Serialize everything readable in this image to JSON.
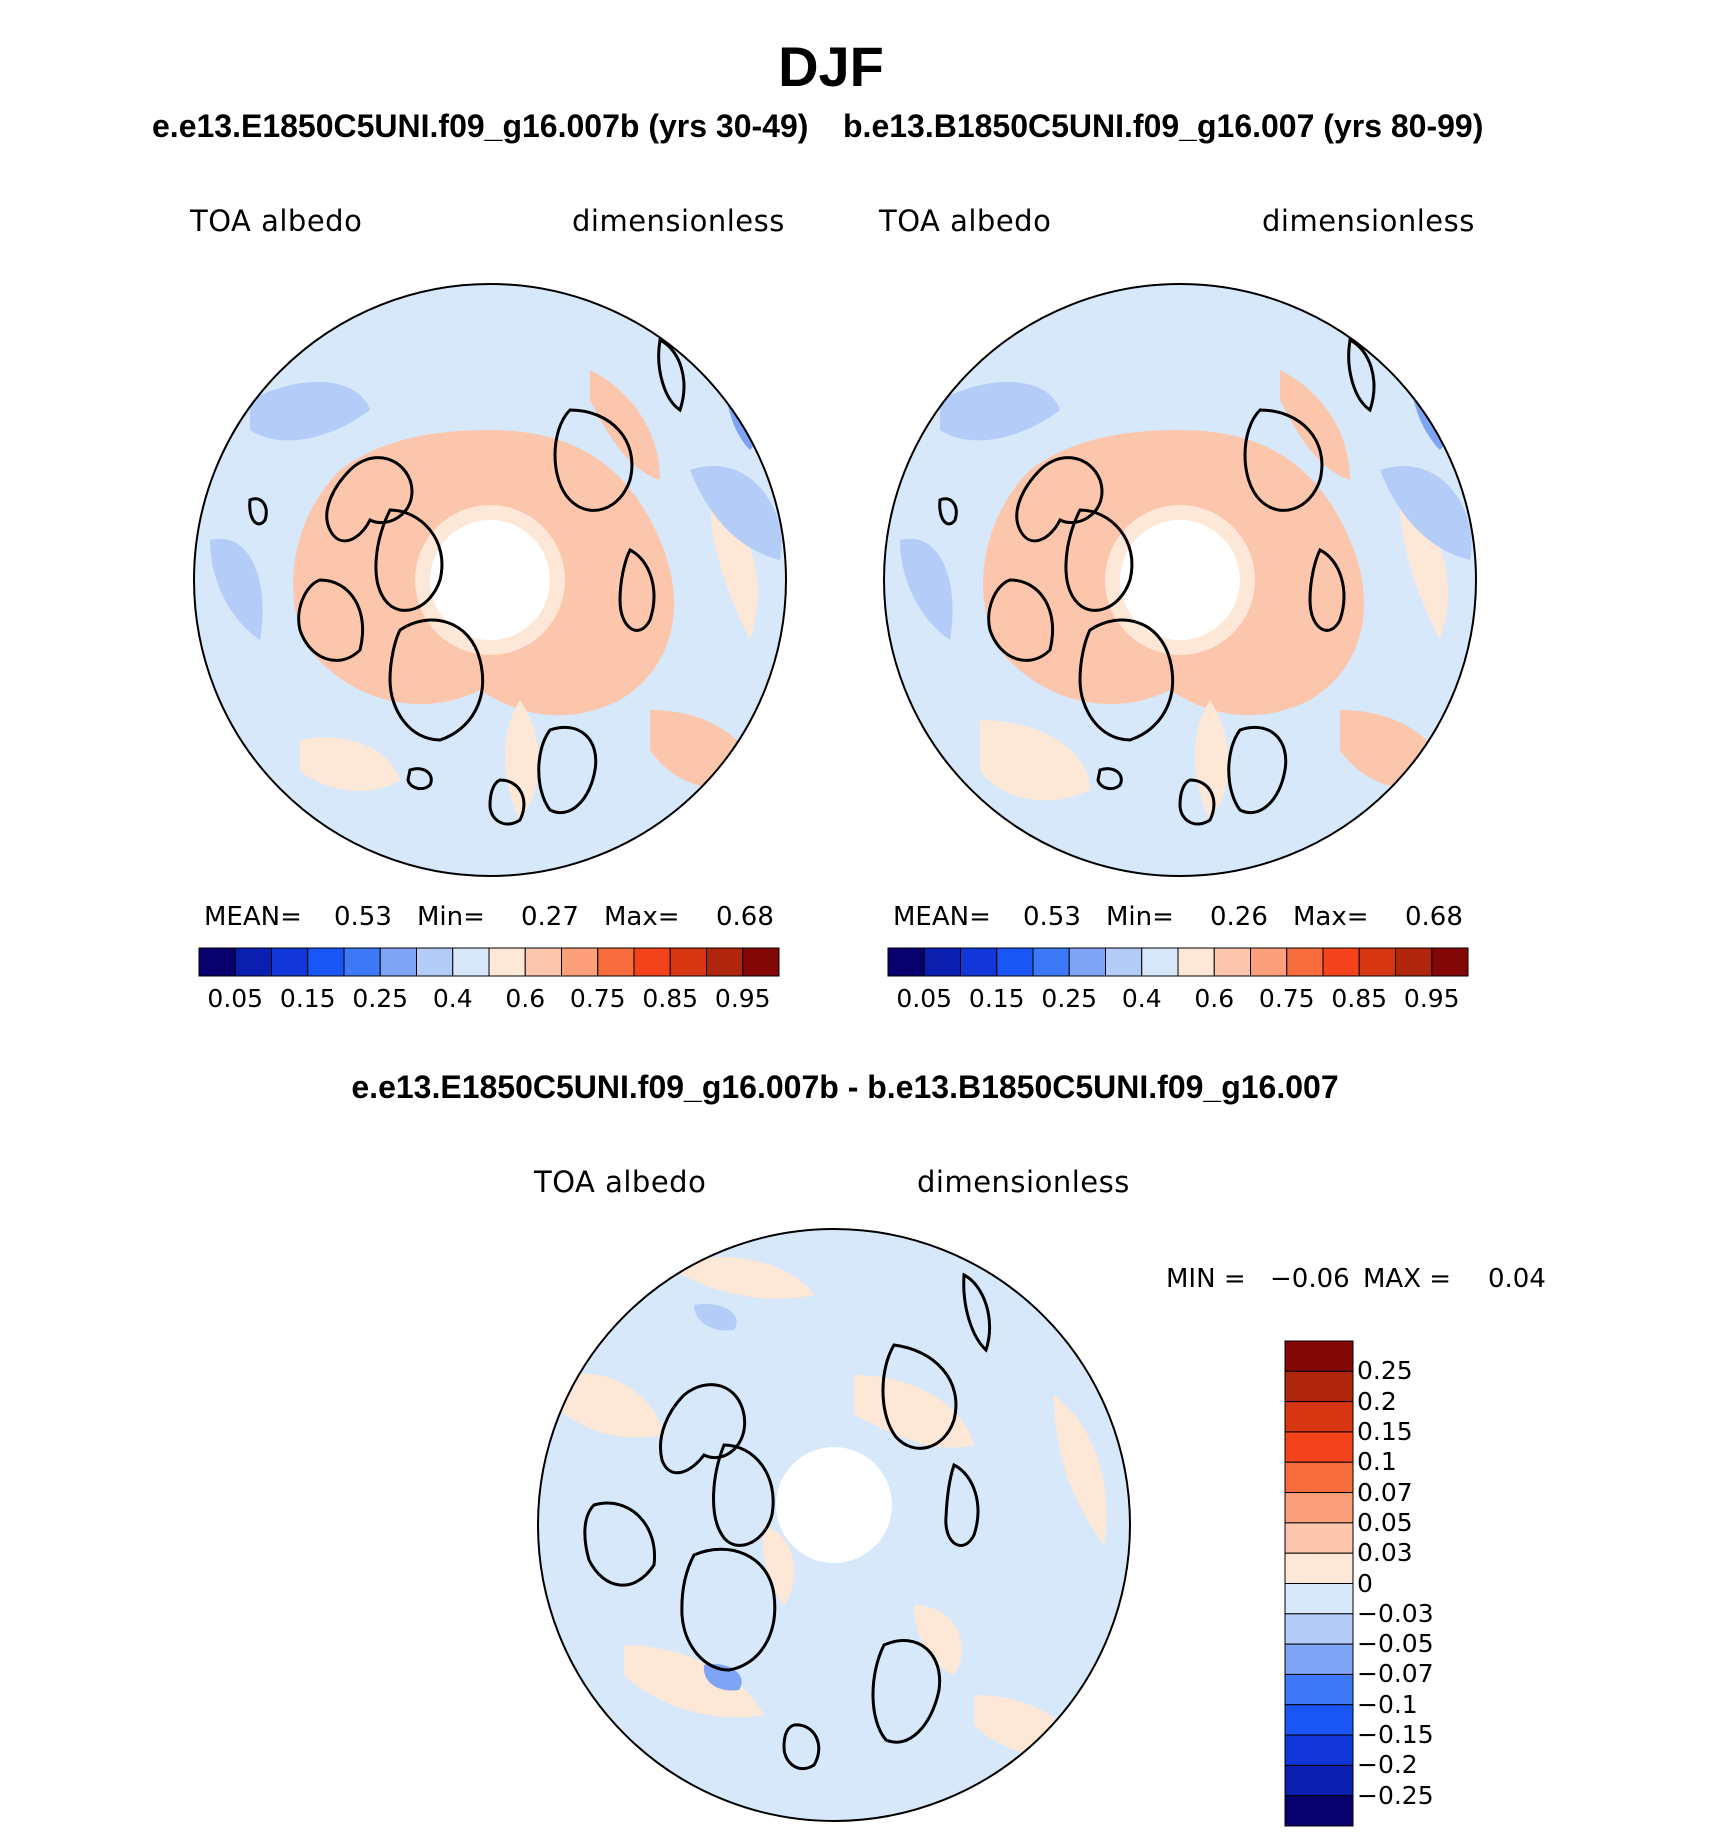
{
  "title": "DJF",
  "subtitle_left": "e.e13.E1850C5UNI.f09_g16.007b (yrs 30-49)",
  "subtitle_right": "b.e13.B1850C5UNI.f09_g16.007 (yrs 80-99)",
  "diff_title": "e.e13.E1850C5UNI.f09_g16.007b - b.e13.B1850C5UNI.f09_g16.007",
  "panels": [
    {
      "variable": "TOA albedo",
      "units": "dimensionless",
      "mean_label": "MEAN=",
      "mean": "0.53",
      "min_label": "Min=",
      "min": "0.27",
      "max_label": "Max=",
      "max": "0.68"
    },
    {
      "variable": "TOA albedo",
      "units": "dimensionless",
      "mean_label": "MEAN=",
      "mean": "0.53",
      "min_label": "Min=",
      "min": "0.26",
      "max_label": "Max=",
      "max": "0.68"
    },
    {
      "variable": "TOA albedo",
      "units": "dimensionless",
      "min_label": "MIN =",
      "min": "−0.06",
      "max_label": "MAX =",
      "max": "0.04"
    }
  ],
  "colorbar_abs": {
    "colors": [
      "#08006e",
      "#0a1fb0",
      "#1137d8",
      "#1a56f5",
      "#3d78f6",
      "#7fa3f5",
      "#b3cdf8",
      "#d7e8fa",
      "#fde7d6",
      "#fcc6ad",
      "#fba07b",
      "#f76c3c",
      "#f4431b",
      "#d83612",
      "#b0260d",
      "#830707"
    ],
    "tick_labels": [
      "0.05",
      "0.15",
      "0.25",
      "0.4",
      "0.6",
      "0.75",
      "0.85",
      "0.95"
    ]
  },
  "colorbar_diff": {
    "colors": [
      "#830707",
      "#b0260d",
      "#d83612",
      "#f4431b",
      "#f76c3c",
      "#fba07b",
      "#fcc6ad",
      "#fde7d6",
      "#d7e8fa",
      "#b3cdf8",
      "#7fa3f5",
      "#3d78f6",
      "#1a56f5",
      "#1137d8",
      "#0a1fb0",
      "#08006e"
    ],
    "tick_labels": [
      "0.25",
      "0.2",
      "0.15",
      "0.1",
      "0.07",
      "0.05",
      "0.03",
      "0",
      "−0.03",
      "−0.05",
      "−0.07",
      "−0.1",
      "−0.15",
      "−0.2",
      "−0.25"
    ]
  },
  "map_colors": {
    "ocean_base": "#d7e8fa",
    "low": "#b3cdf8",
    "lower": "#7fa3f5",
    "mid_warm": "#fde7d6",
    "warm": "#fcc6ad",
    "pole_hole": "#ffffff",
    "coast": "#000000"
  }
}
